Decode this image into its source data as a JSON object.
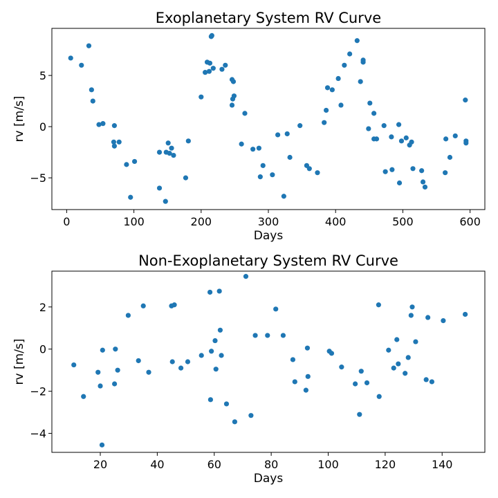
{
  "colors": {
    "marker": "#1f77b4"
  },
  "chart_data": [
    {
      "type": "scatter",
      "title": "Exoplanetary System RV Curve",
      "xlabel": "Days",
      "ylabel": "rv [m/s]",
      "xlim": [
        -22,
        622
      ],
      "ylim": [
        -8.1,
        9.6
      ],
      "xticks": [
        0,
        100,
        200,
        300,
        400,
        500,
        600
      ],
      "yticks": [
        -5,
        0,
        5
      ],
      "grid": false,
      "series": [
        {
          "points": [
            [
              6,
              6.7
            ],
            [
              22,
              6.0
            ],
            [
              33,
              7.9
            ],
            [
              37,
              3.6
            ],
            [
              39,
              2.5
            ],
            [
              48,
              0.2
            ],
            [
              54,
              0.3
            ],
            [
              71,
              0.1
            ],
            [
              70,
              -1.5
            ],
            [
              71,
              -1.9
            ],
            [
              78,
              -1.5
            ],
            [
              89,
              -3.7
            ],
            [
              95,
              -6.9
            ],
            [
              101,
              -3.4
            ],
            [
              138,
              -6.0
            ],
            [
              138,
              -2.5
            ],
            [
              147,
              -7.3
            ],
            [
              148,
              -2.5
            ],
            [
              151,
              -1.6
            ],
            [
              153,
              -2.6
            ],
            [
              156,
              -2.1
            ],
            [
              159,
              -2.8
            ],
            [
              177,
              -5.0
            ],
            [
              181,
              -1.4
            ],
            [
              200,
              2.9
            ],
            [
              206,
              5.3
            ],
            [
              209,
              6.3
            ],
            [
              212,
              5.4
            ],
            [
              213,
              6.2
            ],
            [
              215,
              8.8
            ],
            [
              216,
              8.9
            ],
            [
              218,
              5.7
            ],
            [
              231,
              5.6
            ],
            [
              236,
              6.0
            ],
            [
              246,
              2.1
            ],
            [
              246,
              4.6
            ],
            [
              247,
              2.7
            ],
            [
              248,
              4.4
            ],
            [
              249,
              3.0
            ],
            [
              260,
              -1.7
            ],
            [
              265,
              1.3
            ],
            [
              277,
              -2.2
            ],
            [
              286,
              -2.1
            ],
            [
              288,
              -4.9
            ],
            [
              292,
              -3.8
            ],
            [
              306,
              -4.7
            ],
            [
              314,
              -0.8
            ],
            [
              323,
              -6.8
            ],
            [
              328,
              -0.7
            ],
            [
              332,
              -3.0
            ],
            [
              347,
              0.1
            ],
            [
              357,
              -3.8
            ],
            [
              361,
              -4.1
            ],
            [
              373,
              -4.5
            ],
            [
              383,
              0.4
            ],
            [
              386,
              1.6
            ],
            [
              388,
              3.8
            ],
            [
              395,
              3.6
            ],
            [
              404,
              4.7
            ],
            [
              408,
              2.1
            ],
            [
              413,
              6.0
            ],
            [
              421,
              7.1
            ],
            [
              432,
              8.4
            ],
            [
              437,
              4.4
            ],
            [
              441,
              6.3
            ],
            [
              441,
              6.5
            ],
            [
              449,
              -0.2
            ],
            [
              451,
              2.3
            ],
            [
              457,
              1.3
            ],
            [
              457,
              -1.2
            ],
            [
              461,
              -1.2
            ],
            [
              472,
              0.1
            ],
            [
              474,
              -4.4
            ],
            [
              483,
              -1.0
            ],
            [
              484,
              -4.2
            ],
            [
              494,
              0.2
            ],
            [
              495,
              -5.5
            ],
            [
              498,
              -1.4
            ],
            [
              505,
              -1.1
            ],
            [
              510,
              -1.8
            ],
            [
              513,
              -1.5
            ],
            [
              515,
              -4.1
            ],
            [
              528,
              -4.3
            ],
            [
              530,
              -5.4
            ],
            [
              533,
              -5.9
            ],
            [
              563,
              -4.5
            ],
            [
              564,
              -1.2
            ],
            [
              570,
              -3.0
            ],
            [
              578,
              -0.9
            ],
            [
              593,
              2.6
            ],
            [
              594,
              -1.4
            ],
            [
              594,
              -1.6
            ]
          ]
        }
      ]
    },
    {
      "type": "scatter",
      "title": "Non-Exoplanetary System RV Curve",
      "xlabel": "Days",
      "ylabel": "rv [m/s]",
      "xlim": [
        3,
        155
      ],
      "ylim": [
        -4.9,
        3.7
      ],
      "xticks": [
        20,
        40,
        60,
        80,
        100,
        120,
        140
      ],
      "yticks": [
        -4,
        -2,
        0,
        2
      ],
      "grid": false,
      "series": [
        {
          "points": [
            [
              10.7,
              -0.75
            ],
            [
              14.1,
              -2.25
            ],
            [
              19.2,
              -1.1
            ],
            [
              20.0,
              -1.75
            ],
            [
              20.6,
              -4.55
            ],
            [
              20.8,
              -0.05
            ],
            [
              25.0,
              -1.65
            ],
            [
              25.3,
              0.0
            ],
            [
              26.1,
              -1.0
            ],
            [
              29.8,
              1.6
            ],
            [
              33.4,
              -0.55
            ],
            [
              35.1,
              2.05
            ],
            [
              37.0,
              -1.1
            ],
            [
              45.0,
              2.05
            ],
            [
              45.3,
              -0.6
            ],
            [
              46.0,
              2.1
            ],
            [
              48.3,
              -0.9
            ],
            [
              50.7,
              -0.6
            ],
            [
              55.5,
              -0.3
            ],
            [
              58.5,
              2.7
            ],
            [
              58.7,
              -2.4
            ],
            [
              59.0,
              -0.1
            ],
            [
              60.3,
              0.4
            ],
            [
              60.6,
              -0.95
            ],
            [
              61.8,
              2.75
            ],
            [
              62.1,
              0.9
            ],
            [
              62.5,
              -0.3
            ],
            [
              64.3,
              -2.6
            ],
            [
              67.2,
              -3.45
            ],
            [
              71.1,
              3.45
            ],
            [
              72.9,
              -3.15
            ],
            [
              74.4,
              0.65
            ],
            [
              78.7,
              0.65
            ],
            [
              81.6,
              1.9
            ],
            [
              84.2,
              0.65
            ],
            [
              87.6,
              -0.5
            ],
            [
              88.3,
              -1.55
            ],
            [
              92.2,
              -1.95
            ],
            [
              92.7,
              0.05
            ],
            [
              92.9,
              -1.3
            ],
            [
              100.4,
              -0.1
            ],
            [
              101.2,
              -0.2
            ],
            [
              104.7,
              -0.85
            ],
            [
              109.5,
              -1.65
            ],
            [
              111.0,
              -3.1
            ],
            [
              111.6,
              -1.05
            ],
            [
              113.6,
              -1.6
            ],
            [
              117.7,
              2.1
            ],
            [
              117.9,
              -2.25
            ],
            [
              121.2,
              -0.05
            ],
            [
              123.0,
              -0.9
            ],
            [
              124.1,
              0.45
            ],
            [
              124.6,
              -0.7
            ],
            [
              127.0,
              -1.15
            ],
            [
              128.1,
              -0.4
            ],
            [
              129.1,
              1.6
            ],
            [
              129.5,
              2.0
            ],
            [
              130.7,
              0.35
            ],
            [
              134.4,
              -1.45
            ],
            [
              135.0,
              1.5
            ],
            [
              136.4,
              -1.55
            ],
            [
              140.4,
              1.35
            ],
            [
              148.1,
              1.65
            ]
          ]
        }
      ]
    }
  ]
}
